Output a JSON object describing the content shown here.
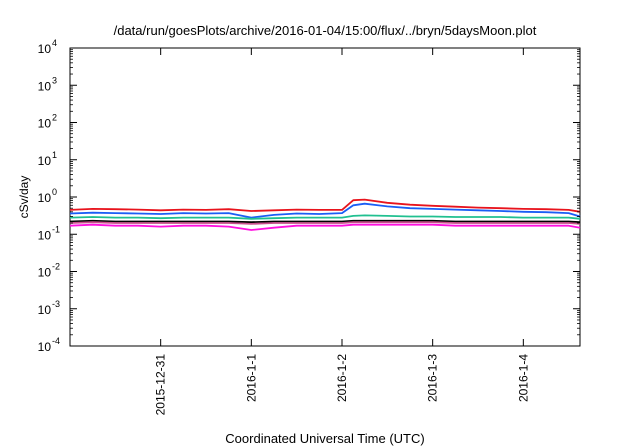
{
  "chart_data": {
    "type": "line",
    "title": "/data/run/goesPlots/archive/2016-01-04/15:00/flux/../bryn/5daysMoon.plot",
    "xlabel": "Coordinated Universal Time (UTC)",
    "ylabel": "cSv/day",
    "y_scale": "log",
    "ylim": [
      0.0001,
      10000
    ],
    "y_ticks": [
      {
        "value": 0.0001,
        "base": "10",
        "exp": "-4"
      },
      {
        "value": 0.001,
        "base": "10",
        "exp": "-3"
      },
      {
        "value": 0.01,
        "base": "10",
        "exp": "-2"
      },
      {
        "value": 0.1,
        "base": "10",
        "exp": "-1"
      },
      {
        "value": 1,
        "base": "10",
        "exp": "0"
      },
      {
        "value": 10,
        "base": "10",
        "exp": "1"
      },
      {
        "value": 100,
        "base": "10",
        "exp": "2"
      },
      {
        "value": 1000,
        "base": "10",
        "exp": "3"
      },
      {
        "value": 10000,
        "base": "10",
        "exp": "4"
      }
    ],
    "xlim": [
      "2015-12-30 00:00",
      "2016-01-04 15:00"
    ],
    "x_ticks": [
      "2015-12-31",
      "2016-1-1",
      "2016-1-2",
      "2016-1-3",
      "2016-1-4"
    ],
    "grid": false,
    "x": [
      "2015-12-30 00:00",
      "2015-12-30 06:00",
      "2015-12-30 12:00",
      "2015-12-30 18:00",
      "2015-12-31 00:00",
      "2015-12-31 06:00",
      "2015-12-31 12:00",
      "2015-12-31 18:00",
      "2016-01-01 00:00",
      "2016-01-01 06:00",
      "2016-01-01 12:00",
      "2016-01-01 18:00",
      "2016-01-02 00:00",
      "2016-01-02 03:00",
      "2016-01-02 06:00",
      "2016-01-02 12:00",
      "2016-01-02 18:00",
      "2016-01-03 00:00",
      "2016-01-03 06:00",
      "2016-01-03 12:00",
      "2016-01-03 18:00",
      "2016-01-04 00:00",
      "2016-01-04 06:00",
      "2016-01-04 12:00",
      "2016-01-04 15:00"
    ],
    "series": [
      {
        "color": "#e8141d",
        "values": [
          0.45,
          0.48,
          0.47,
          0.46,
          0.44,
          0.46,
          0.45,
          0.47,
          0.42,
          0.44,
          0.46,
          0.45,
          0.45,
          0.82,
          0.85,
          0.7,
          0.62,
          0.58,
          0.55,
          0.52,
          0.5,
          0.48,
          0.47,
          0.45,
          0.4
        ]
      },
      {
        "color": "#1a5ef5",
        "values": [
          0.36,
          0.38,
          0.37,
          0.36,
          0.35,
          0.37,
          0.36,
          0.37,
          0.28,
          0.33,
          0.36,
          0.35,
          0.37,
          0.6,
          0.66,
          0.56,
          0.5,
          0.48,
          0.46,
          0.44,
          0.42,
          0.4,
          0.39,
          0.37,
          0.3
        ]
      },
      {
        "color": "#20c090",
        "values": [
          0.28,
          0.29,
          0.28,
          0.28,
          0.27,
          0.28,
          0.28,
          0.28,
          0.26,
          0.27,
          0.28,
          0.28,
          0.28,
          0.31,
          0.32,
          0.31,
          0.3,
          0.3,
          0.29,
          0.29,
          0.29,
          0.28,
          0.28,
          0.28,
          0.26
        ]
      },
      {
        "color": "#000000",
        "values": [
          0.22,
          0.23,
          0.22,
          0.22,
          0.22,
          0.22,
          0.22,
          0.22,
          0.21,
          0.22,
          0.22,
          0.22,
          0.22,
          0.23,
          0.23,
          0.23,
          0.23,
          0.23,
          0.22,
          0.22,
          0.22,
          0.22,
          0.22,
          0.22,
          0.21
        ]
      },
      {
        "color": "#c8508c",
        "values": [
          0.2,
          0.21,
          0.2,
          0.2,
          0.2,
          0.2,
          0.2,
          0.2,
          0.19,
          0.2,
          0.2,
          0.2,
          0.2,
          0.21,
          0.21,
          0.21,
          0.21,
          0.21,
          0.2,
          0.2,
          0.2,
          0.2,
          0.2,
          0.2,
          0.19
        ]
      },
      {
        "color": "#ff10e0",
        "values": [
          0.17,
          0.18,
          0.17,
          0.17,
          0.16,
          0.17,
          0.17,
          0.16,
          0.13,
          0.15,
          0.17,
          0.17,
          0.17,
          0.18,
          0.18,
          0.18,
          0.18,
          0.18,
          0.17,
          0.17,
          0.17,
          0.17,
          0.17,
          0.17,
          0.15
        ]
      }
    ]
  }
}
